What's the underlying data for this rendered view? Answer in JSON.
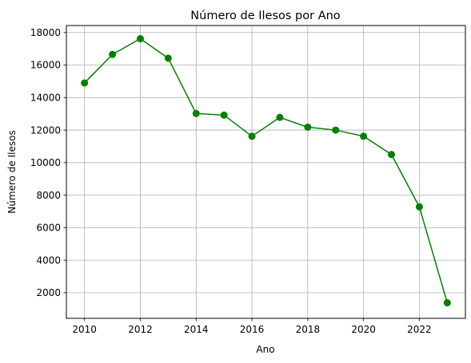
{
  "chart_data": {
    "type": "line",
    "title": "Número de Ilesos por Ano",
    "xlabel": "Ano",
    "ylabel": "Número de Ilesos",
    "x": [
      2010,
      2011,
      2012,
      2013,
      2014,
      2015,
      2016,
      2017,
      2018,
      2019,
      2020,
      2021,
      2022,
      2023
    ],
    "series": [
      {
        "values": [
          14900,
          16650,
          17620,
          16420,
          13020,
          12920,
          11620,
          12780,
          12180,
          12000,
          11620,
          10500,
          7280,
          1380
        ],
        "color": "#008000",
        "marker": "circle"
      }
    ],
    "xlim": [
      2009.35,
      2023.65
    ],
    "ylim": [
      425,
      18430
    ],
    "xticks": [
      2010,
      2012,
      2014,
      2016,
      2018,
      2020,
      2022
    ],
    "yticks": [
      2000,
      4000,
      6000,
      8000,
      10000,
      12000,
      14000,
      16000,
      18000
    ],
    "grid": true,
    "grid_color": "#b0b0b0",
    "legend": false
  }
}
